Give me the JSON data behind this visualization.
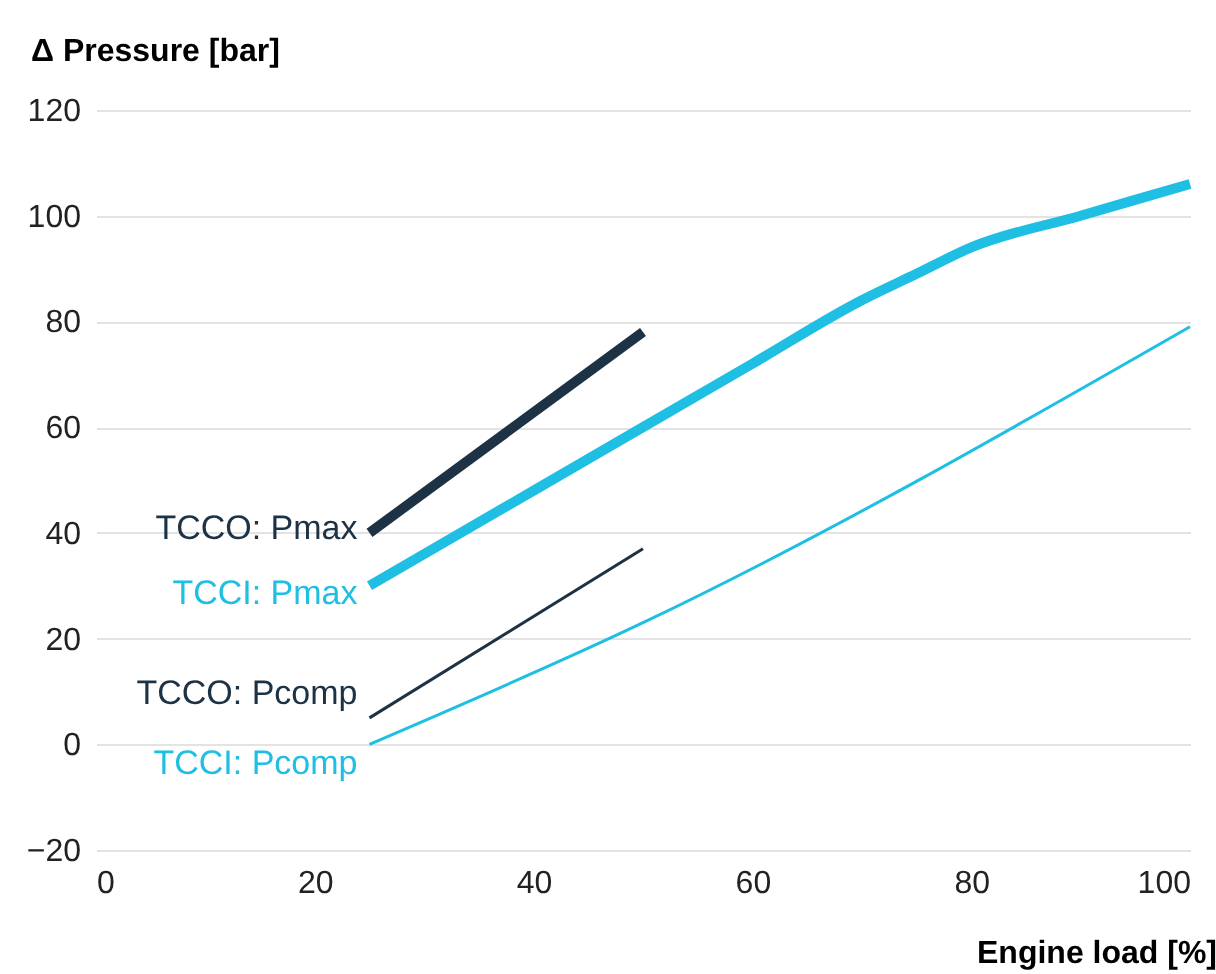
{
  "chart_data": {
    "type": "line",
    "xlabel": "Engine load  [%]",
    "ylabel": "Δ Pressure [bar]",
    "xlim": [
      0,
      100
    ],
    "xticks": [
      0,
      20,
      40,
      60,
      80,
      100
    ],
    "ylim": [
      -20,
      120
    ],
    "yticks": [
      -20,
      0,
      20,
      40,
      60,
      80,
      100,
      120
    ],
    "grid": "y",
    "legend": false,
    "marker": "none",
    "line_style": "solid",
    "series": [
      {
        "name": "TCCO: Pmax",
        "color": "#1d3245",
        "x": [
          25,
          50
        ],
        "values": [
          40,
          78
        ]
      },
      {
        "name": "TCCI: Pmax",
        "color": "#1ebfe3",
        "x": [
          25,
          50,
          60,
          70,
          75,
          80,
          90,
          100
        ],
        "values": [
          30,
          60,
          72,
          84,
          89,
          94,
          100,
          106
        ]
      },
      {
        "name": "TCCO: Pcomp",
        "color": "#1d3245",
        "x": [
          25,
          50
        ],
        "values": [
          5,
          37
        ]
      },
      {
        "name": "TCCI: Pcomp",
        "color": "#1ebfe3",
        "x": [
          25,
          50,
          100
        ],
        "values": [
          0,
          23,
          79
        ]
      }
    ]
  }
}
